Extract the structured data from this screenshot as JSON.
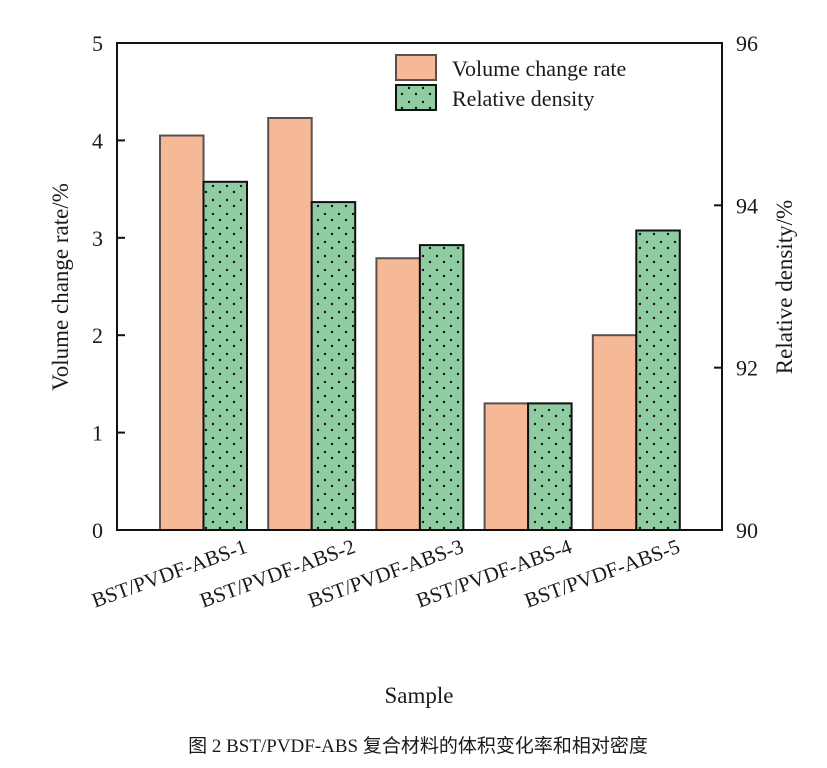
{
  "chart_data": {
    "type": "bar",
    "title": "",
    "xlabel": "Sample",
    "ylabel": "Volume change rate/%",
    "y2label": "Relative density/%",
    "categories": [
      "BST/PVDF-ABS-1",
      "BST/PVDF-ABS-2",
      "BST/PVDF-ABS-3",
      "BST/PVDF-ABS-4",
      "BST/PVDF-ABS-5"
    ],
    "series": [
      {
        "name": "Volume change rate",
        "axis": "left",
        "values": [
          4.05,
          4.23,
          2.79,
          1.3,
          2.0
        ],
        "color": "#F5B997",
        "edge": "#5a5050"
      },
      {
        "name": "Relative density",
        "axis": "right",
        "values": [
          94.29,
          94.04,
          93.51,
          91.56,
          93.69
        ],
        "color": "#8FCCA2",
        "edge": "#111111",
        "pattern": "dots"
      }
    ],
    "ylim": [
      0,
      5
    ],
    "yticks": [
      0,
      1,
      2,
      3,
      4,
      5
    ],
    "y2lim": [
      90,
      96
    ],
    "y2ticks": [
      90,
      92,
      94,
      96
    ],
    "grid": false,
    "legend_position": "top-right"
  },
  "caption": "图 2   BST/PVDF-ABS 复合材料的体积变化率和相对密度"
}
